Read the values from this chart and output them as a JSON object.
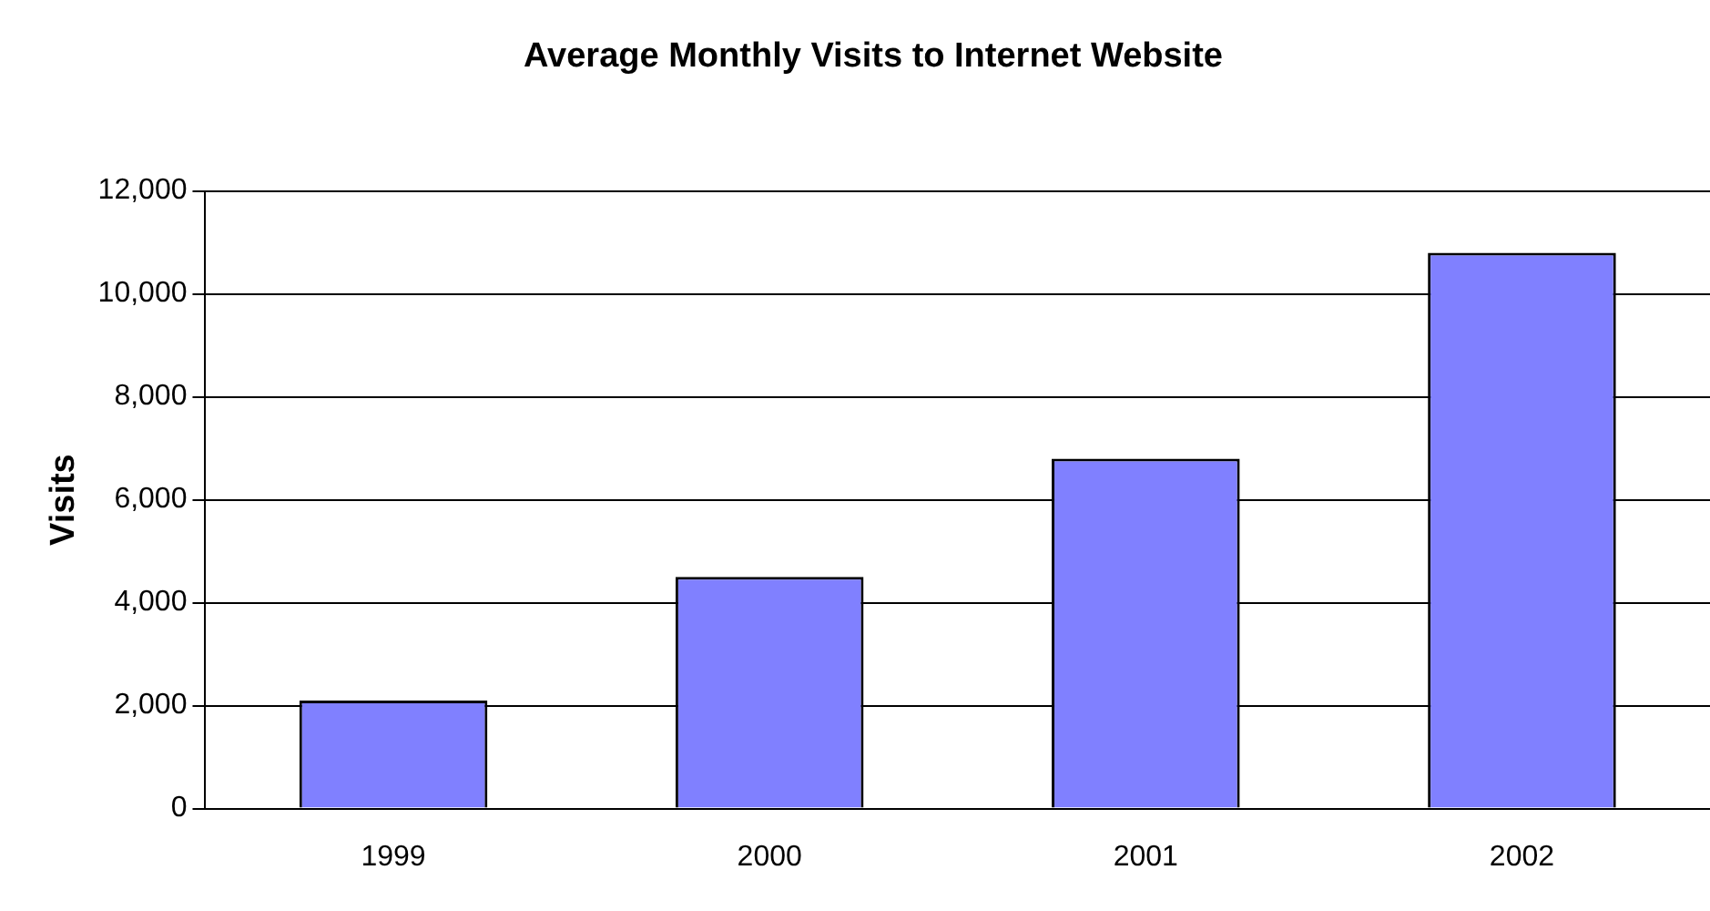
{
  "chart_data": {
    "type": "bar",
    "title": "Average Monthly Visits to Internet Website",
    "ylabel": "Visits",
    "categories": [
      "1999",
      "2000",
      "2001",
      "2002"
    ],
    "values": [
      2100,
      4500,
      6800,
      10800
    ],
    "color": "#8080ff",
    "ylim": [
      0,
      12000
    ],
    "yticks": [
      {
        "value": 0,
        "label": "0"
      },
      {
        "value": 2000,
        "label": "2,000"
      },
      {
        "value": 4000,
        "label": "4,000"
      },
      {
        "value": 6000,
        "label": "6,000"
      },
      {
        "value": 8000,
        "label": "8,000"
      },
      {
        "value": 10000,
        "label": "10,000"
      },
      {
        "value": 12000,
        "label": "12,000"
      }
    ],
    "grid": "y"
  }
}
